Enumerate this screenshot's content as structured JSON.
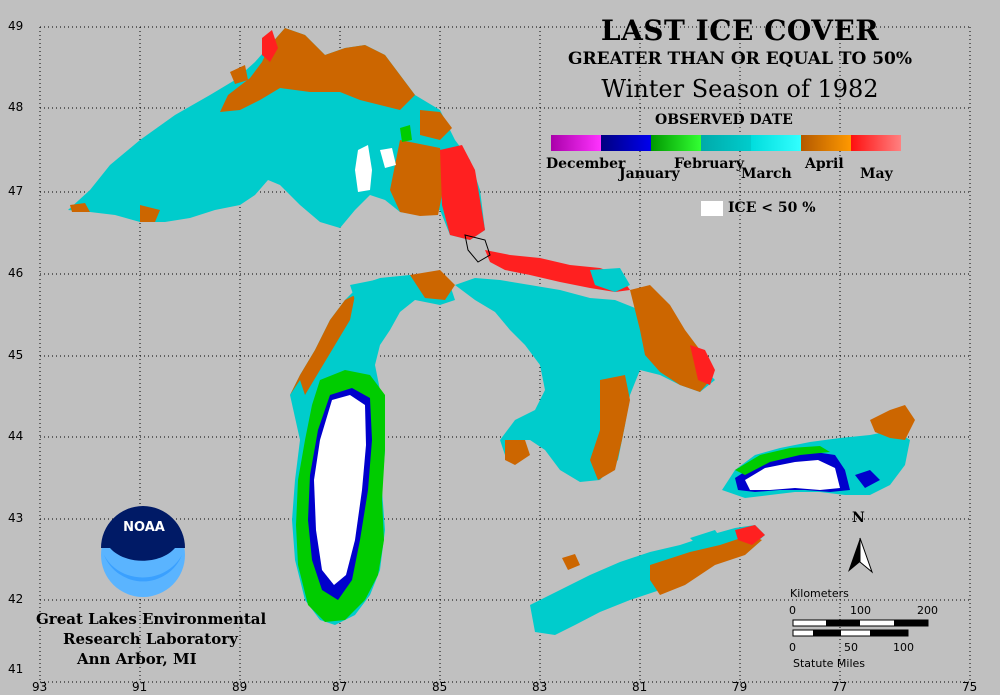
{
  "title": {
    "line1": "LAST ICE COVER",
    "line2": "GREATER THAN OR EQUAL TO 50%",
    "line3": "Winter Season of 1982"
  },
  "legend": {
    "title": "OBSERVED DATE",
    "months": [
      "December",
      "January",
      "February",
      "March",
      "April",
      "May"
    ],
    "colors": {
      "december": "#aa00aa",
      "january": "#0000cc",
      "february": "#00cc00",
      "march": "#00cccc",
      "april": "#cc6600",
      "may": "#ff2020"
    },
    "ice_label": "ICE < 50 %"
  },
  "axes": {
    "latitudes": [
      "49",
      "48",
      "47",
      "46",
      "45",
      "44",
      "43",
      "42",
      "41"
    ],
    "longitudes": [
      "93",
      "91",
      "89",
      "87",
      "85",
      "83",
      "81",
      "79",
      "77",
      "75"
    ]
  },
  "org": {
    "logo_text": "NOAA",
    "line1": "Great Lakes Environmental",
    "line2": "Research Laboratory",
    "line3": "Ann Arbor, MI"
  },
  "scale": {
    "km_label": "Kilometers",
    "km_ticks": [
      "0",
      "100",
      "200"
    ],
    "mi_ticks": [
      "0",
      "50",
      "100"
    ],
    "mi_label": "Statute Miles"
  },
  "north_label": "N"
}
